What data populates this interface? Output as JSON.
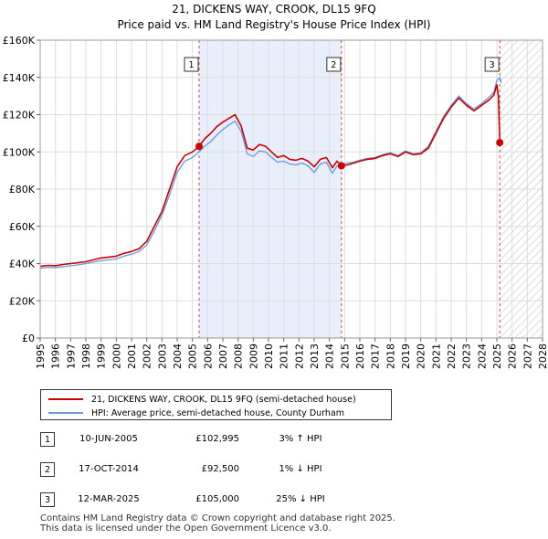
{
  "title": "21, DICKENS WAY, CROOK, DL15 9FQ",
  "subtitle": "Price paid vs. HM Land Registry's House Price Index (HPI)",
  "colors": {
    "price_line": "#cc0000",
    "hpi_line": "#6699dd",
    "shade": "#e8eefa",
    "hatch": "#bbbbbb",
    "grid": "#dddddd",
    "marker_vline": "#dd4444"
  },
  "chart_data": {
    "type": "line",
    "title": "21, DICKENS WAY, CROOK, DL15 9FQ",
    "subtitle": "Price paid vs. HM Land Registry's House Price Index (HPI)",
    "xlim": [
      1995,
      2028
    ],
    "ylim": [
      0,
      160000
    ],
    "x_ticks": [
      1995,
      1996,
      1997,
      1998,
      1999,
      2000,
      2001,
      2002,
      2003,
      2004,
      2005,
      2006,
      2007,
      2008,
      2009,
      2010,
      2011,
      2012,
      2013,
      2014,
      2015,
      2016,
      2017,
      2018,
      2019,
      2020,
      2021,
      2022,
      2023,
      2024,
      2025,
      2026,
      2027,
      2028
    ],
    "y_ticks": [
      {
        "value": 0,
        "label": "£0"
      },
      {
        "value": 20000,
        "label": "£20K"
      },
      {
        "value": 40000,
        "label": "£40K"
      },
      {
        "value": 60000,
        "label": "£60K"
      },
      {
        "value": 80000,
        "label": "£80K"
      },
      {
        "value": 100000,
        "label": "£100K"
      },
      {
        "value": 120000,
        "label": "£120K"
      },
      {
        "value": 140000,
        "label": "£140K"
      },
      {
        "value": 160000,
        "label": "£160K"
      }
    ],
    "grid": true,
    "shaded_ownership_period": [
      2005.44,
      2014.79
    ],
    "future_hatch_from": 2025.2,
    "series": [
      {
        "name": "21, DICKENS WAY, CROOK, DL15 9FQ (semi-detached house)",
        "color": "#cc0000",
        "x": [
          1995.0,
          1995.5,
          1996.0,
          1996.5,
          1997.0,
          1997.5,
          1998.0,
          1998.5,
          1999.0,
          1999.5,
          2000.0,
          2000.5,
          2001.0,
          2001.5,
          2002.0,
          2002.5,
          2003.0,
          2003.5,
          2004.0,
          2004.5,
          2005.0,
          2005.44,
          2005.8,
          2006.2,
          2006.6,
          2007.0,
          2007.4,
          2007.8,
          2008.2,
          2008.6,
          2009.0,
          2009.4,
          2009.8,
          2010.2,
          2010.6,
          2011.0,
          2011.4,
          2011.8,
          2012.2,
          2012.6,
          2013.0,
          2013.4,
          2013.8,
          2014.2,
          2014.5,
          2014.79,
          2015.2,
          2015.6,
          2016.0,
          2016.5,
          2017.0,
          2017.5,
          2018.0,
          2018.5,
          2019.0,
          2019.5,
          2020.0,
          2020.5,
          2021.0,
          2021.5,
          2022.0,
          2022.5,
          2023.0,
          2023.5,
          2024.0,
          2024.5,
          2024.8,
          2025.0,
          2025.1,
          2025.19
        ],
        "y": [
          38500,
          39000,
          38800,
          39500,
          40000,
          40500,
          41000,
          42000,
          43000,
          43500,
          44000,
          45500,
          46500,
          48000,
          52000,
          60000,
          68000,
          80000,
          92000,
          98000,
          100000,
          102995,
          107000,
          110000,
          113500,
          116000,
          118000,
          120000,
          114000,
          102000,
          101000,
          104000,
          103000,
          100000,
          97000,
          98000,
          96000,
          95500,
          96500,
          95000,
          92000,
          96000,
          97000,
          91500,
          95000,
          92500,
          93000,
          94000,
          95000,
          96000,
          96500,
          98000,
          99000,
          97500,
          100000,
          98500,
          99000,
          102000,
          110000,
          118000,
          124000,
          129000,
          125000,
          122000,
          125000,
          128000,
          130500,
          136000,
          130000,
          105000
        ]
      },
      {
        "name": "HPI: Average price, semi-detached house, County Durham",
        "color": "#6699dd",
        "x": [
          1995.0,
          1995.5,
          1996.0,
          1996.5,
          1997.0,
          1997.5,
          1998.0,
          1998.5,
          1999.0,
          1999.5,
          2000.0,
          2000.5,
          2001.0,
          2001.5,
          2002.0,
          2002.5,
          2003.0,
          2003.5,
          2004.0,
          2004.5,
          2005.0,
          2005.44,
          2005.8,
          2006.2,
          2006.6,
          2007.0,
          2007.4,
          2007.8,
          2008.2,
          2008.6,
          2009.0,
          2009.4,
          2009.8,
          2010.2,
          2010.6,
          2011.0,
          2011.4,
          2011.8,
          2012.2,
          2012.6,
          2013.0,
          2013.4,
          2013.8,
          2014.2,
          2014.5,
          2014.79,
          2015.2,
          2015.6,
          2016.0,
          2016.5,
          2017.0,
          2017.5,
          2018.0,
          2018.5,
          2019.0,
          2019.5,
          2020.0,
          2020.5,
          2021.0,
          2021.5,
          2022.0,
          2022.5,
          2023.0,
          2023.5,
          2024.0,
          2024.5,
          2024.8,
          2025.0,
          2025.19,
          2025.3
        ],
        "y": [
          37500,
          38000,
          37800,
          38300,
          38800,
          39300,
          40000,
          40800,
          41500,
          42000,
          42500,
          44000,
          45000,
          46500,
          50000,
          57500,
          66000,
          77000,
          89000,
          95000,
          97000,
          100000,
          103000,
          105500,
          109000,
          112000,
          114500,
          116500,
          111000,
          99000,
          97500,
          100500,
          100000,
          97000,
          94500,
          95000,
          93500,
          93000,
          94000,
          92500,
          89000,
          93500,
          94500,
          88500,
          92500,
          93500,
          94000,
          94500,
          95500,
          96500,
          97000,
          98500,
          99500,
          98000,
          100500,
          99000,
          99500,
          103000,
          111000,
          119000,
          125000,
          130000,
          126000,
          123000,
          126000,
          129500,
          132000,
          138500,
          140000,
          137000
        ]
      }
    ],
    "sales": [
      {
        "id": "1",
        "x": 2005.44,
        "y": 102995
      },
      {
        "id": "2",
        "x": 2014.79,
        "y": 92500
      },
      {
        "id": "3",
        "x": 2025.19,
        "y": 105000
      }
    ]
  },
  "legend": {
    "price_label": "21, DICKENS WAY, CROOK, DL15 9FQ (semi-detached house)",
    "hpi_label": "HPI: Average price, semi-detached house, County Durham"
  },
  "transactions": [
    {
      "num": "1",
      "date": "10-JUN-2005",
      "price": "£102,995",
      "hpi": "3% ↑ HPI"
    },
    {
      "num": "2",
      "date": "17-OCT-2014",
      "price": "£92,500",
      "hpi": "1% ↓ HPI"
    },
    {
      "num": "3",
      "date": "12-MAR-2025",
      "price": "£105,000",
      "hpi": "25% ↓ HPI"
    }
  ],
  "footer": {
    "line1": "Contains HM Land Registry data © Crown copyright and database right 2025.",
    "line2": "This data is licensed under the Open Government Licence v3.0."
  }
}
